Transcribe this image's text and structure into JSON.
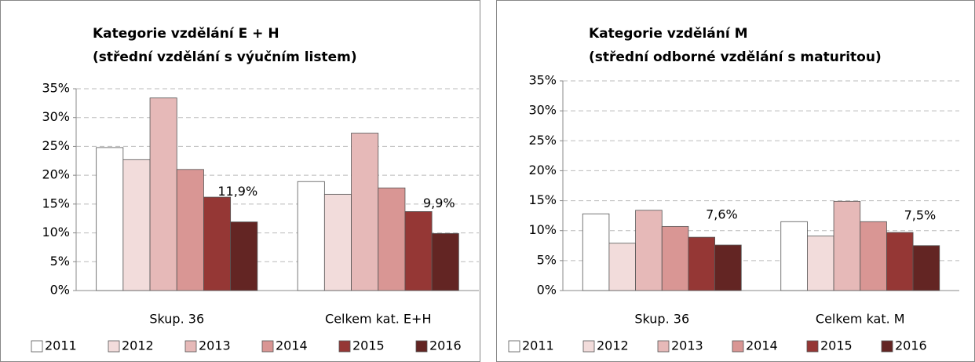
{
  "chart_data": [
    {
      "type": "bar",
      "title": "Kategorie vzdělání  E + H",
      "subtitle": "(střední vzdělání  s výučním listem)",
      "categories": [
        "Skup. 36",
        "Celkem kat. E+H"
      ],
      "series": [
        {
          "name": "2011",
          "color": "#ffffff",
          "values": [
            24.8,
            18.9
          ]
        },
        {
          "name": "2012",
          "color": "#f2dcdb",
          "values": [
            22.7,
            16.7
          ]
        },
        {
          "name": "2013",
          "color": "#e6b9b8",
          "values": [
            33.4,
            27.3
          ]
        },
        {
          "name": "2014",
          "color": "#d99694",
          "values": [
            21.0,
            17.8
          ]
        },
        {
          "name": "2015",
          "color": "#953735",
          "values": [
            16.2,
            13.7
          ]
        },
        {
          "name": "2016",
          "color": "#632523",
          "values": [
            11.9,
            9.9
          ],
          "value_labels": [
            "11,9%",
            "9,9%"
          ]
        }
      ],
      "ylim": [
        0,
        35
      ],
      "yticks": [
        {
          "value": 0,
          "label": "0%"
        },
        {
          "value": 5,
          "label": "5%"
        },
        {
          "value": 10,
          "label": "10%"
        },
        {
          "value": 15,
          "label": "15%"
        },
        {
          "value": 20,
          "label": "20%"
        },
        {
          "value": 25,
          "label": "25%"
        },
        {
          "value": 30,
          "label": "30%"
        },
        {
          "value": 35,
          "label": "35%"
        }
      ],
      "grid": true,
      "legend": "bottom"
    },
    {
      "type": "bar",
      "title": "Kategorie vzdělání  M",
      "subtitle": "(střední odborné vzdělání  s maturitou)",
      "categories": [
        "Skup. 36",
        "Celkem kat. M"
      ],
      "series": [
        {
          "name": "2011",
          "color": "#ffffff",
          "values": [
            12.8,
            11.5
          ]
        },
        {
          "name": "2012",
          "color": "#f2dcdb",
          "values": [
            7.9,
            9.1
          ]
        },
        {
          "name": "2013",
          "color": "#e6b9b8",
          "values": [
            13.4,
            14.9
          ]
        },
        {
          "name": "2014",
          "color": "#d99694",
          "values": [
            10.7,
            11.5
          ]
        },
        {
          "name": "2015",
          "color": "#953735",
          "values": [
            8.9,
            9.7
          ]
        },
        {
          "name": "2016",
          "color": "#632523",
          "values": [
            7.6,
            7.5
          ],
          "value_labels": [
            "7,6%",
            "7,5%"
          ]
        }
      ],
      "ylim": [
        0,
        35
      ],
      "yticks": [
        {
          "value": 0,
          "label": "0%"
        },
        {
          "value": 5,
          "label": "5%"
        },
        {
          "value": 10,
          "label": "10%"
        },
        {
          "value": 15,
          "label": "15%"
        },
        {
          "value": 20,
          "label": "20%"
        },
        {
          "value": 25,
          "label": "25%"
        },
        {
          "value": 30,
          "label": "30%"
        },
        {
          "value": 35,
          "label": "35%"
        }
      ],
      "grid": true,
      "legend": "bottom"
    }
  ]
}
